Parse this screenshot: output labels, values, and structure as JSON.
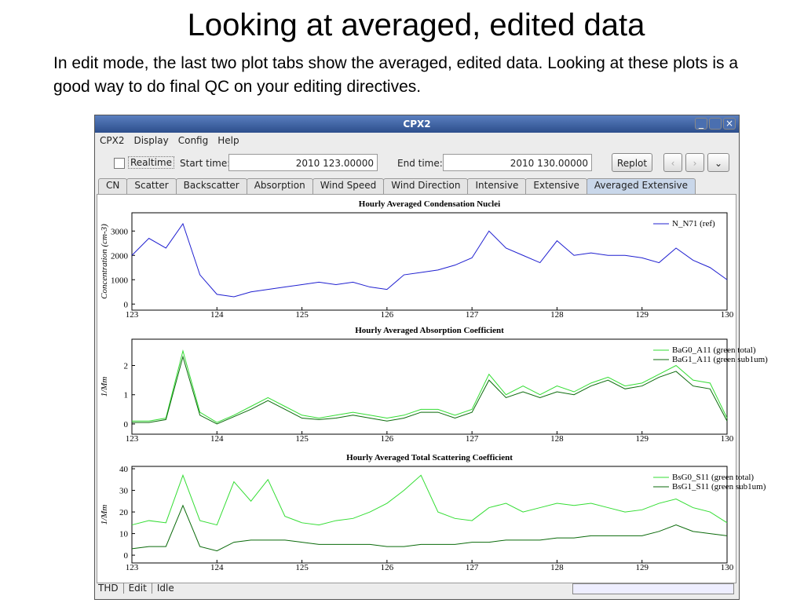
{
  "slide": {
    "title": "Looking at averaged, edited data",
    "body": "In edit mode, the last two plot tabs show the averaged, edited data.  Looking at these plots is a good way to do final QC on your editing directives."
  },
  "window": {
    "title": "CPX2",
    "menu": [
      "CPX2",
      "Display",
      "Config",
      "Help"
    ],
    "realtime": "Realtime",
    "start_label": "Start time:",
    "start_value": "2010 123.00000",
    "end_label": "End time:",
    "end_value": "2010 130.00000",
    "replot": "Replot",
    "tabs": [
      "CN",
      "Scatter",
      "Backscatter",
      "Absorption",
      "Wind Speed",
      "Wind Direction",
      "Intensive",
      "Extensive",
      "Averaged Extensive"
    ],
    "active_tab": "Averaged Extensive",
    "status": [
      "THD",
      "Edit",
      "Idle"
    ]
  },
  "chart_data": [
    {
      "type": "line",
      "title": "Hourly Averaged Condensation Nuclei",
      "y_label": "Concentration (cm-3)",
      "legend": "upper right",
      "x": [
        123.0,
        123.2,
        123.4,
        123.6,
        123.8,
        124.0,
        124.2,
        124.4,
        124.6,
        124.8,
        125.0,
        125.2,
        125.4,
        125.6,
        125.8,
        126.0,
        126.2,
        126.4,
        126.6,
        126.8,
        127.0,
        127.2,
        127.4,
        127.6,
        127.8,
        128.0,
        128.2,
        128.4,
        128.6,
        128.8,
        129.0,
        129.2,
        129.4,
        129.6,
        129.8,
        130.0
      ],
      "xlim": [
        123,
        130
      ],
      "xticks": [
        123,
        124,
        125,
        126,
        127,
        128,
        129,
        130
      ],
      "ylim": [
        -250,
        3750
      ],
      "yticks": [
        0,
        1000,
        2000,
        3000
      ],
      "series": [
        {
          "name": "N_N71 (ref)",
          "color": "#1f1fd0",
          "values": [
            2000,
            2700,
            2300,
            3300,
            1200,
            400,
            300,
            500,
            600,
            700,
            800,
            900,
            800,
            900,
            700,
            600,
            1200,
            1300,
            1400,
            1600,
            1900,
            3000,
            2300,
            2000,
            1700,
            2600,
            2000,
            2100,
            2000,
            2000,
            1900,
            1700,
            2300,
            1800,
            1500,
            1000
          ]
        }
      ]
    },
    {
      "type": "line",
      "title": "Hourly Averaged Absorption Coefficient",
      "y_label": "1/Mm",
      "legend": "upper right",
      "x": [
        123.0,
        123.2,
        123.4,
        123.6,
        123.8,
        124.0,
        124.2,
        124.4,
        124.6,
        124.8,
        125.0,
        125.2,
        125.4,
        125.6,
        125.8,
        126.0,
        126.2,
        126.4,
        126.6,
        126.8,
        127.0,
        127.2,
        127.4,
        127.6,
        127.8,
        128.0,
        128.2,
        128.4,
        128.6,
        128.8,
        129.0,
        129.2,
        129.4,
        129.6,
        129.8,
        130.0
      ],
      "xlim": [
        123,
        130
      ],
      "xticks": [
        123,
        124,
        125,
        126,
        127,
        128,
        129,
        130
      ],
      "ylim": [
        -0.35,
        2.9
      ],
      "yticks": [
        0,
        1,
        2
      ],
      "series": [
        {
          "name": "BaG0_A11 (green total)",
          "color": "#33dd33",
          "values": [
            0.1,
            0.1,
            0.2,
            2.5,
            0.4,
            0.05,
            0.3,
            0.6,
            0.9,
            0.6,
            0.3,
            0.2,
            0.3,
            0.4,
            0.3,
            0.2,
            0.3,
            0.5,
            0.5,
            0.3,
            0.5,
            1.7,
            1.0,
            1.3,
            1.0,
            1.3,
            1.1,
            1.4,
            1.6,
            1.3,
            1.4,
            1.7,
            2.0,
            1.5,
            1.4,
            0.2
          ]
        },
        {
          "name": "BaG1_A11 (green sub1um)",
          "color": "#0a6a0a",
          "values": [
            0.05,
            0.05,
            0.15,
            2.3,
            0.3,
            0,
            0.25,
            0.5,
            0.8,
            0.5,
            0.2,
            0.15,
            0.2,
            0.3,
            0.2,
            0.1,
            0.2,
            0.4,
            0.4,
            0.2,
            0.4,
            1.5,
            0.9,
            1.1,
            0.9,
            1.1,
            1.0,
            1.3,
            1.5,
            1.2,
            1.3,
            1.6,
            1.8,
            1.3,
            1.2,
            0.1
          ]
        }
      ]
    },
    {
      "type": "line",
      "title": "Hourly Averaged Total Scattering Coefficient",
      "y_label": "1/Mm",
      "legend": "upper right",
      "x": [
        123.0,
        123.2,
        123.4,
        123.6,
        123.8,
        124.0,
        124.2,
        124.4,
        124.6,
        124.8,
        125.0,
        125.2,
        125.4,
        125.6,
        125.8,
        126.0,
        126.2,
        126.4,
        126.6,
        126.8,
        127.0,
        127.2,
        127.4,
        127.6,
        127.8,
        128.0,
        128.2,
        128.4,
        128.6,
        128.8,
        129.0,
        129.2,
        129.4,
        129.6,
        129.8,
        130.0
      ],
      "xlim": [
        123,
        130
      ],
      "xticks": [
        123,
        124,
        125,
        126,
        127,
        128,
        129,
        130
      ],
      "ylim": [
        -3.6,
        41.1
      ],
      "yticks": [
        0,
        10,
        20,
        30,
        40
      ],
      "series": [
        {
          "name": "BsG0_S11 (green total)",
          "color": "#33dd33",
          "values": [
            14,
            16,
            15,
            37,
            16,
            14,
            34,
            25,
            35,
            18,
            15,
            14,
            16,
            17,
            20,
            24,
            30,
            37,
            20,
            17,
            16,
            22,
            24,
            20,
            22,
            24,
            23,
            24,
            22,
            20,
            21,
            24,
            26,
            22,
            20,
            15
          ]
        },
        {
          "name": "BsG1_S11 (green sub1um)",
          "color": "#0a6a0a",
          "values": [
            3,
            4,
            4,
            23,
            4,
            2,
            6,
            7,
            7,
            7,
            6,
            5,
            5,
            5,
            5,
            4,
            4,
            5,
            5,
            5,
            6,
            6,
            7,
            7,
            7,
            8,
            8,
            9,
            9,
            9,
            9,
            11,
            14,
            11,
            10,
            9
          ]
        }
      ]
    }
  ]
}
